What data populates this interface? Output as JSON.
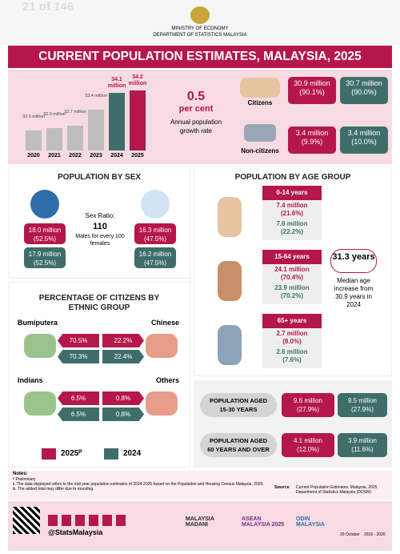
{
  "header": {
    "page_counter": "21 of 146",
    "ministry": "MINISTRY OF ECONOMY",
    "department": "DEPARTMENT OF STATISTICS MALAYSIA",
    "title": "CURRENT POPULATION ESTIMATES, MALAYSIA, 2025"
  },
  "population_trend": {
    "categories": [
      "2020",
      "2021",
      "2022",
      "2023",
      "2024",
      "2025"
    ],
    "values": [
      32.5,
      32.6,
      32.7,
      33.4,
      34.1,
      34.2
    ],
    "value_labels": [
      "32.5 million",
      "32.6 million",
      "32.7 million",
      "33.4 million",
      "34.1 million",
      "34.2 million"
    ],
    "colors": [
      "#bdbdbd",
      "#bdbdbd",
      "#bdbdbd",
      "#bdbdbd",
      "#3f6e6a",
      "#b5174b"
    ]
  },
  "growth": {
    "value": "0.5",
    "unit": "per cent",
    "label": "Annual population growth rate"
  },
  "citizenship": [
    {
      "label": "Citizens",
      "y2025": [
        "30.9 million",
        "(90.1%)"
      ],
      "y2024": [
        "30.7 million",
        "(90.0%)"
      ]
    },
    {
      "label": "Non-citizens",
      "y2025": [
        "3.4 million",
        "(9.9%)"
      ],
      "y2024": [
        "3.4 million",
        "(10.0%)"
      ]
    }
  ],
  "sex": {
    "title": "POPULATION BY SEX",
    "male": {
      "y2025": [
        "18.0 million",
        "(52.5%)"
      ],
      "y2024": [
        "17.9 million",
        "(52.5%)"
      ]
    },
    "female": {
      "y2025": [
        "16.3 million",
        "(47.5%)"
      ],
      "y2024": [
        "16.2 million",
        "(47.5%)"
      ]
    },
    "ratio_label": "Sex Ratio:",
    "ratio": "110",
    "ratio_note": "Males for every 100 females"
  },
  "ethnic": {
    "title": "PERCENTAGE OF CITIZENS BY ETHNIC GROUP",
    "groups": [
      {
        "name": "Bumiputera",
        "y2025": "70.5%",
        "y2024": "70.3%"
      },
      {
        "name": "Chinese",
        "y2025": "22.2%",
        "y2024": "22.4%"
      },
      {
        "name": "Indians",
        "y2025": "6.5%",
        "y2024": "6.5%"
      },
      {
        "name": "Others",
        "y2025": "0.8%",
        "y2024": "0.8%"
      }
    ]
  },
  "legend": [
    {
      "label": "2025ᴾ",
      "color": "#b5174b"
    },
    {
      "label": "2024",
      "color": "#3f6e6a"
    }
  ],
  "age": {
    "title": "POPULATION BY AGE GROUP",
    "groups": [
      {
        "name": "0-14 years",
        "y2025": [
          "7.4 million",
          "(21.6%)"
        ],
        "y2024": [
          "7.6 million",
          "(22.2%)"
        ]
      },
      {
        "name": "15-64 years",
        "y2025": [
          "24.1 million",
          "(70.4%)"
        ],
        "y2024": [
          "23.9 million",
          "(70.2%)"
        ]
      },
      {
        "name": "65+ years",
        "y2025": [
          "2.7 million",
          "(8.0%)"
        ],
        "y2024": [
          "2.6 million",
          "(7.6%)"
        ]
      }
    ],
    "median": "31.3 years",
    "median_note": "Median age increase from 30.9 years in 2024"
  },
  "aged": [
    {
      "label": [
        "POPULATION AGED",
        "15-30 YEARS"
      ],
      "y2025": [
        "9.6 million",
        "(27.9%)"
      ],
      "y2024": [
        "9.5 million",
        "(27.9%)"
      ]
    },
    {
      "label": [
        "POPULATION AGED",
        "60 YEARS AND OVER"
      ],
      "y2025": [
        "4.1 million",
        "(12.0%)"
      ],
      "y2024": [
        "3.9 million",
        "(11.6%)"
      ]
    }
  ],
  "notes": {
    "title": "Notes:",
    "items": [
      "ᴾ Preliminary",
      "ii. The data displayed refers to the mid-year population estimates of 2024-2025 based on the Population and Housing Census Malaysia, 2020.",
      "iii. The added total may differ due to rounding."
    ],
    "source_label": "Source",
    "source": "Current Population Estimates, Malaysia, 2025 Department of Statistics Malaysia (DOSM)"
  },
  "footer": {
    "handle": "@StatsMalaysia",
    "logos": [
      "MALAYSIA MADANI",
      "ASEAN MALAYSIA 2025",
      "ODIN MALAYSIA",
      "20 October",
      "2016 - 2026"
    ]
  }
}
